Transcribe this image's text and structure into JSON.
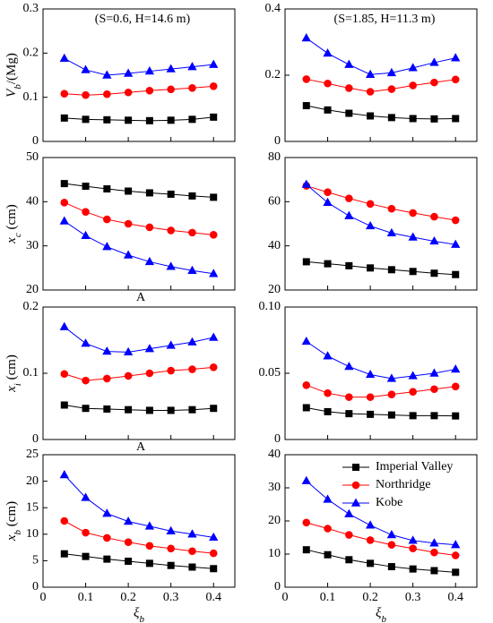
{
  "chart_data": [
    {
      "type": "line",
      "x": [
        0.05,
        0.1,
        0.15,
        0.2,
        0.25,
        0.3,
        0.35,
        0.4
      ],
      "xlim": [
        0,
        0.45
      ],
      "xticks": [
        0,
        0.1,
        0.2,
        0.3,
        0.4
      ],
      "show_xtick_labels": false,
      "ylim": [
        0,
        0.3
      ],
      "yticks": [
        0,
        0.1,
        0.2,
        0.3
      ],
      "ylabel": {
        "symbol": "V",
        "subscript": "b",
        "suffix": "/(Mg)"
      },
      "annotation": "(S=0.6, H=14.6 m)",
      "series": [
        {
          "color": "#000000",
          "marker": "square",
          "values": [
            0.053,
            0.05,
            0.049,
            0.048,
            0.047,
            0.048,
            0.05,
            0.055
          ]
        },
        {
          "color": "#ff0000",
          "marker": "circle",
          "values": [
            0.108,
            0.105,
            0.107,
            0.111,
            0.115,
            0.118,
            0.121,
            0.125
          ]
        },
        {
          "color": "#0000ff",
          "marker": "triangle",
          "values": [
            0.188,
            0.162,
            0.15,
            0.154,
            0.159,
            0.164,
            0.169,
            0.174
          ]
        }
      ]
    },
    {
      "type": "line",
      "x": [
        0.05,
        0.1,
        0.15,
        0.2,
        0.25,
        0.3,
        0.35,
        0.4
      ],
      "xlim": [
        0,
        0.45
      ],
      "xticks": [
        0,
        0.1,
        0.2,
        0.3,
        0.4
      ],
      "show_xtick_labels": false,
      "ylim": [
        0,
        0.4
      ],
      "yticks": [
        0,
        0.2,
        0.4
      ],
      "annotation": "(S=1.85, H=11.3 m)",
      "series": [
        {
          "color": "#000000",
          "marker": "square",
          "values": [
            0.108,
            0.095,
            0.085,
            0.077,
            0.072,
            0.069,
            0.068,
            0.069
          ]
        },
        {
          "color": "#ff0000",
          "marker": "circle",
          "values": [
            0.188,
            0.175,
            0.161,
            0.15,
            0.158,
            0.169,
            0.178,
            0.187
          ]
        },
        {
          "color": "#0000ff",
          "marker": "triangle",
          "values": [
            0.312,
            0.266,
            0.232,
            0.202,
            0.207,
            0.222,
            0.238,
            0.252
          ]
        }
      ]
    },
    {
      "type": "line",
      "x": [
        0.05,
        0.1,
        0.15,
        0.2,
        0.25,
        0.3,
        0.35,
        0.4
      ],
      "xlim": [
        0,
        0.45
      ],
      "xticks": [
        0,
        0.1,
        0.2,
        0.3,
        0.4
      ],
      "show_xtick_labels": false,
      "ylim": [
        20,
        50
      ],
      "yticks": [
        20,
        30,
        40,
        50
      ],
      "ylabel": {
        "symbol": "x",
        "subscript": "c",
        "suffix": " (cm)"
      },
      "note": "A",
      "series": [
        {
          "color": "#000000",
          "marker": "square",
          "values": [
            44.1,
            43.5,
            42.9,
            42.4,
            42.0,
            41.7,
            41.3,
            41.0
          ]
        },
        {
          "color": "#ff0000",
          "marker": "circle",
          "values": [
            39.8,
            37.7,
            36.0,
            35.0,
            34.2,
            33.5,
            33.0,
            32.5
          ]
        },
        {
          "color": "#0000ff",
          "marker": "triangle",
          "values": [
            35.6,
            32.3,
            29.8,
            27.9,
            26.4,
            25.3,
            24.4,
            23.7
          ]
        }
      ]
    },
    {
      "type": "line",
      "x": [
        0.05,
        0.1,
        0.15,
        0.2,
        0.25,
        0.3,
        0.35,
        0.4
      ],
      "xlim": [
        0,
        0.45
      ],
      "xticks": [
        0,
        0.1,
        0.2,
        0.3,
        0.4
      ],
      "show_xtick_labels": false,
      "ylim": [
        20,
        80
      ],
      "yticks": [
        20,
        40,
        60,
        80
      ],
      "series": [
        {
          "color": "#000000",
          "marker": "square",
          "values": [
            32.8,
            31.9,
            31.0,
            30.0,
            29.2,
            28.4,
            27.6,
            27.0
          ]
        },
        {
          "color": "#ff0000",
          "marker": "circle",
          "values": [
            67.2,
            64.3,
            61.5,
            59.0,
            56.8,
            54.9,
            53.2,
            51.6
          ]
        },
        {
          "color": "#0000ff",
          "marker": "triangle",
          "values": [
            67.8,
            59.6,
            53.6,
            49.0,
            45.8,
            43.9,
            42.1,
            40.6
          ]
        }
      ]
    },
    {
      "type": "line",
      "x": [
        0.05,
        0.1,
        0.15,
        0.2,
        0.25,
        0.3,
        0.35,
        0.4
      ],
      "xlim": [
        0,
        0.45
      ],
      "xticks": [
        0,
        0.1,
        0.2,
        0.3,
        0.4
      ],
      "show_xtick_labels": false,
      "ylim": [
        0,
        0.2
      ],
      "yticks": [
        0,
        0.1,
        0.2
      ],
      "ylabel": {
        "symbol": "x",
        "subscript": "i",
        "suffix": " (cm)"
      },
      "note": "A",
      "series": [
        {
          "color": "#000000",
          "marker": "square",
          "values": [
            0.052,
            0.047,
            0.046,
            0.045,
            0.044,
            0.044,
            0.045,
            0.047
          ]
        },
        {
          "color": "#ff0000",
          "marker": "circle",
          "values": [
            0.099,
            0.089,
            0.092,
            0.096,
            0.1,
            0.104,
            0.106,
            0.109
          ]
        },
        {
          "color": "#0000ff",
          "marker": "triangle",
          "values": [
            0.17,
            0.145,
            0.133,
            0.132,
            0.137,
            0.142,
            0.147,
            0.154
          ]
        }
      ]
    },
    {
      "type": "line",
      "x": [
        0.05,
        0.1,
        0.15,
        0.2,
        0.25,
        0.3,
        0.35,
        0.4
      ],
      "xlim": [
        0,
        0.45
      ],
      "xticks": [
        0,
        0.1,
        0.2,
        0.3,
        0.4
      ],
      "show_xtick_labels": false,
      "ylim": [
        0,
        0.1
      ],
      "yticks": [
        0,
        0.05,
        {
          "value": 0.1,
          "label": "0.10"
        }
      ],
      "series": [
        {
          "color": "#000000",
          "marker": "square",
          "values": [
            0.024,
            0.021,
            0.0195,
            0.019,
            0.0185,
            0.018,
            0.018,
            0.0178
          ]
        },
        {
          "color": "#ff0000",
          "marker": "circle",
          "values": [
            0.041,
            0.035,
            0.032,
            0.032,
            0.034,
            0.036,
            0.038,
            0.04
          ]
        },
        {
          "color": "#0000ff",
          "marker": "triangle",
          "values": [
            0.074,
            0.063,
            0.055,
            0.049,
            0.046,
            0.048,
            0.05,
            0.053
          ]
        }
      ]
    },
    {
      "type": "line",
      "x": [
        0.05,
        0.1,
        0.15,
        0.2,
        0.25,
        0.3,
        0.35,
        0.4
      ],
      "xlim": [
        0,
        0.45
      ],
      "xticks": [
        0,
        0.1,
        0.2,
        0.3,
        0.4
      ],
      "show_xtick_labels": true,
      "ylim": [
        0,
        25
      ],
      "yticks": [
        0,
        5,
        10,
        15,
        20,
        25
      ],
      "ylabel": {
        "symbol": "x",
        "subscript": "b",
        "suffix": " (cm)"
      },
      "xlabel": {
        "symbol": "ξ",
        "subscript": "b"
      },
      "series": [
        {
          "color": "#000000",
          "marker": "square",
          "values": [
            6.3,
            5.8,
            5.3,
            4.9,
            4.5,
            4.1,
            3.8,
            3.5
          ]
        },
        {
          "color": "#ff0000",
          "marker": "circle",
          "values": [
            12.5,
            10.3,
            9.3,
            8.5,
            7.8,
            7.3,
            6.8,
            6.4
          ]
        },
        {
          "color": "#0000ff",
          "marker": "triangle",
          "values": [
            21.2,
            16.9,
            13.9,
            12.4,
            11.5,
            10.6,
            10.0,
            9.4
          ]
        }
      ]
    },
    {
      "type": "line",
      "x": [
        0.05,
        0.1,
        0.15,
        0.2,
        0.25,
        0.3,
        0.35,
        0.4
      ],
      "xlim": [
        0,
        0.45
      ],
      "xticks": [
        0,
        0.1,
        0.2,
        0.3,
        0.4
      ],
      "show_xtick_labels": true,
      "ylim": [
        0,
        40
      ],
      "yticks": [
        0,
        10,
        20,
        30,
        40
      ],
      "xlabel": {
        "symbol": "ξ",
        "subscript": "b"
      },
      "legend": "upper right",
      "series": [
        {
          "name": "Imperial Valley",
          "color": "#000000",
          "marker": "square",
          "values": [
            11.3,
            9.8,
            8.3,
            7.2,
            6.2,
            5.5,
            5.0,
            4.5
          ]
        },
        {
          "name": "Northridge",
          "color": "#ff0000",
          "marker": "circle",
          "values": [
            19.5,
            17.7,
            15.8,
            14.2,
            12.8,
            11.7,
            10.5,
            9.6
          ]
        },
        {
          "name": "Kobe",
          "color": "#0000ff",
          "marker": "triangle",
          "values": [
            32.1,
            26.5,
            22.1,
            18.7,
            15.8,
            14.1,
            13.3,
            12.8
          ]
        }
      ]
    }
  ]
}
